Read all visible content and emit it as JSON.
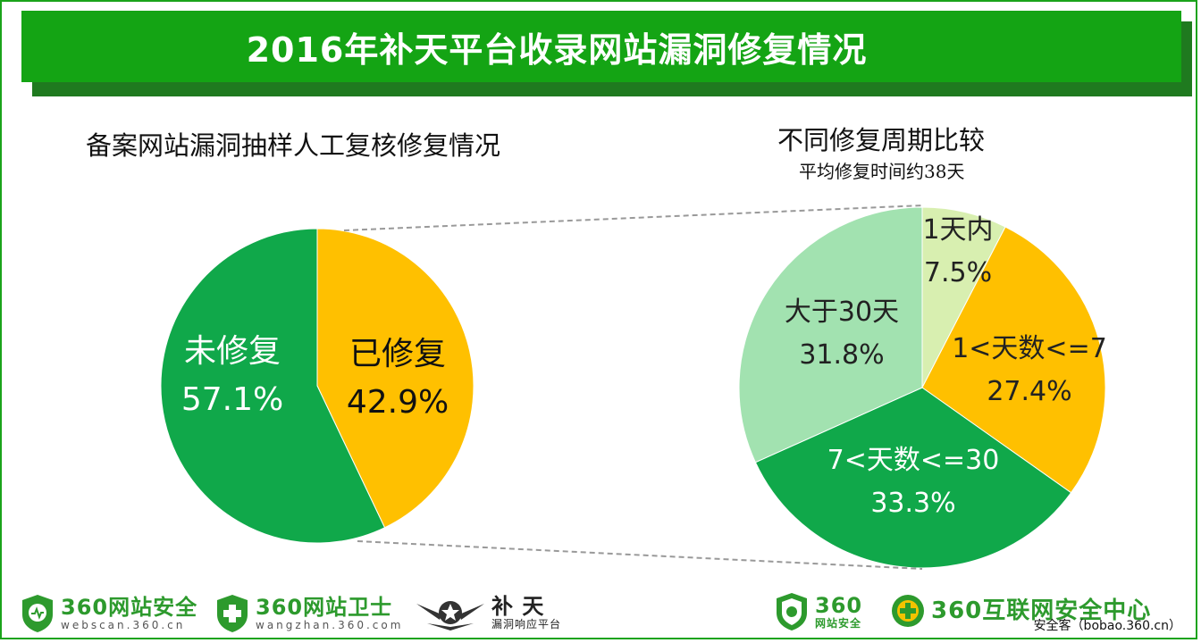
{
  "header": {
    "title": "2016年补天平台收录网站漏洞修复情况"
  },
  "chart_data": [
    {
      "type": "pie",
      "title": "备案网站漏洞抽样人工复核修复情况",
      "slices": [
        {
          "label": "已修复",
          "value": 42.9,
          "value_label": "42.9%",
          "color": "#FFC000"
        },
        {
          "label": "未修复",
          "value": 57.1,
          "value_label": "57.1%",
          "color": "#10A84A"
        }
      ]
    },
    {
      "type": "pie",
      "title": "不同修复周期比较",
      "subtitle": "平均修复时间约38天",
      "slices": [
        {
          "label": "1天内",
          "value": 7.5,
          "value_label": "7.5%",
          "color": "#D8EFB0"
        },
        {
          "label": "1<天数<=7",
          "value": 27.4,
          "value_label": "27.4%",
          "color": "#FFC000"
        },
        {
          "label": "7<天数<=30",
          "value": 33.3,
          "value_label": "33.3%",
          "color": "#10A84A"
        },
        {
          "label": "大于30天",
          "value": 31.8,
          "value_label": "31.8%",
          "color": "#A2E2B0"
        }
      ]
    }
  ],
  "logos": {
    "webscan": {
      "main": "360网站安全",
      "sub": "webscan.360.cn"
    },
    "wangzhan": {
      "main": "360网站卫士",
      "sub": "wangzhan.360.com"
    },
    "butian": {
      "main": "补 天",
      "sub": "漏洞响应平台"
    },
    "wzaq": {
      "main": "360",
      "sub": "网站安全"
    },
    "center": {
      "main": "360互联网安全中心"
    },
    "source": "安全客（bobao.360.cn）"
  }
}
